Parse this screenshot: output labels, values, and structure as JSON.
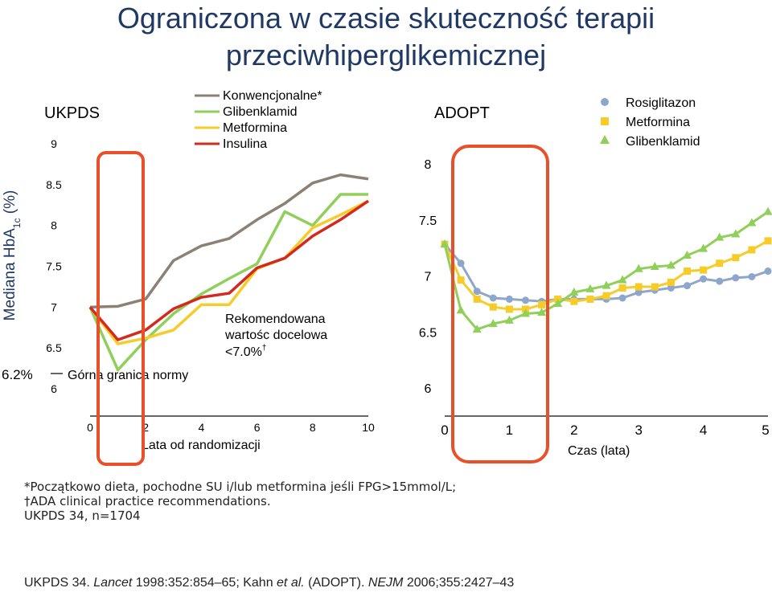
{
  "title_line1": "Ograniczona w czasie skuteczność terapii",
  "title_line2": "przeciwhiperglikemicznej",
  "y_axis_label_main": "Mediana HbA",
  "y_axis_label_sub": "1c",
  "y_axis_label_tail": " (%)",
  "colors": {
    "konwencjonalne": "#8b8174",
    "glibenklamid": "#8fcf5a",
    "metformina": "#f5cc2a",
    "insulina": "#d42a1e",
    "rosiglitazon": "#8fa6cc",
    "highlight": "#e8502a"
  },
  "chart_data": [
    {
      "type": "line",
      "panel_label": "UKPDS",
      "xlabel": "Lata od randomizacji",
      "xlim": [
        0,
        10
      ],
      "ylim": [
        6,
        9
      ],
      "x_ticks": [
        "0",
        "2",
        "4",
        "6",
        "8",
        "10"
      ],
      "y_ticks": [
        "9",
        "8.5",
        "8",
        "7.5",
        "7",
        "6.5",
        "6"
      ],
      "reference_line": {
        "value": 6.2,
        "label_value": "6.2%",
        "label": "Górna granica normy"
      },
      "target_annotation": {
        "line1": "Rekomendowana",
        "line2": "wartośc docelowa",
        "line3": "<7.0%",
        "mark": "†"
      },
      "x": [
        0,
        1,
        2,
        3,
        4,
        5,
        6,
        7,
        8,
        9,
        10
      ],
      "series": [
        {
          "name": "Konwencjonalne*",
          "values": [
            7.0,
            7.01,
            7.1,
            7.57,
            7.75,
            7.84,
            8.07,
            8.27,
            8.52,
            8.62,
            8.57
          ]
        },
        {
          "name": "Glibenklamid",
          "values": [
            7.0,
            6.23,
            6.6,
            6.92,
            7.16,
            7.35,
            7.53,
            8.17,
            8.0,
            8.38,
            8.38
          ]
        },
        {
          "name": "Metformina",
          "values": [
            7.0,
            6.55,
            6.62,
            6.72,
            7.03,
            7.03,
            7.47,
            7.6,
            7.97,
            8.13,
            8.3
          ]
        },
        {
          "name": "Insulina",
          "values": [
            7.0,
            6.6,
            6.72,
            6.98,
            7.12,
            7.17,
            7.48,
            7.6,
            7.87,
            8.07,
            8.3
          ]
        }
      ]
    },
    {
      "type": "line",
      "panel_label": "ADOPT",
      "xlabel": "Czas (lata)",
      "xlim": [
        0,
        5
      ],
      "ylim": [
        6,
        8
      ],
      "x_ticks": [
        "0",
        "1",
        "2",
        "3",
        "4",
        "5"
      ],
      "y_ticks": [
        "8",
        "7.5",
        "7",
        "6.5",
        "6"
      ],
      "x": [
        0,
        0.25,
        0.5,
        0.75,
        1,
        1.25,
        1.5,
        1.75,
        2,
        2.25,
        2.5,
        2.75,
        3,
        3.25,
        3.5,
        3.75,
        4,
        4.25,
        4.5,
        4.75,
        5
      ],
      "series": [
        {
          "name": "Rosiglitazon",
          "values": [
            7.29,
            7.12,
            6.87,
            6.81,
            6.8,
            6.79,
            6.78,
            6.8,
            6.8,
            6.8,
            6.8,
            6.81,
            6.86,
            6.88,
            6.9,
            6.92,
            6.98,
            6.96,
            6.99,
            7.0,
            7.05
          ]
        },
        {
          "name": "Metformina",
          "values": [
            7.29,
            6.97,
            6.8,
            6.73,
            6.71,
            6.71,
            6.75,
            6.8,
            6.78,
            6.8,
            6.83,
            6.9,
            6.91,
            6.91,
            6.95,
            7.05,
            7.06,
            7.12,
            7.17,
            7.24,
            7.32
          ]
        },
        {
          "name": "Glibenklamid",
          "values": [
            7.29,
            6.7,
            6.53,
            6.58,
            6.61,
            6.67,
            6.68,
            6.76,
            6.86,
            6.89,
            6.92,
            6.97,
            7.07,
            7.09,
            7.1,
            7.19,
            7.25,
            7.35,
            7.38,
            7.48,
            7.58
          ]
        }
      ]
    }
  ],
  "footnotes": {
    "line1": "*Początkowo dieta, pochodne SU i/lub metformina jeśli FPG>15mmol/L;",
    "line2": "†ADA clinical practice recommendations.",
    "line3": "UKPDS 34, n=1704"
  },
  "citation": {
    "p1": "UKPDS 34. ",
    "p2": "Lancet",
    "p3": " 1998:352:854–65; Kahn ",
    "p4": "et al.",
    "p5": " (ADOPT). ",
    "p6": "NEJM",
    "p7": " 2006;355:2427–43"
  }
}
